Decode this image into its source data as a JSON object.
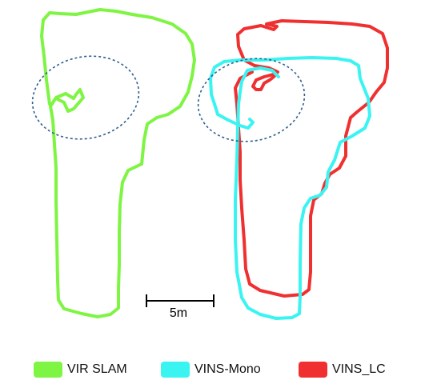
{
  "figure": {
    "scale_bar_label": "5m"
  },
  "legend": {
    "items": [
      {
        "label": "VIR SLAM",
        "color": "#7ef542"
      },
      {
        "label": "VINS-Mono",
        "color": "#3af4f2"
      },
      {
        "label": "VINS_LC",
        "color": "#f03030"
      }
    ]
  },
  "colors": {
    "ellipse": "#2f5f8f",
    "scale_bar": "#000000"
  }
}
